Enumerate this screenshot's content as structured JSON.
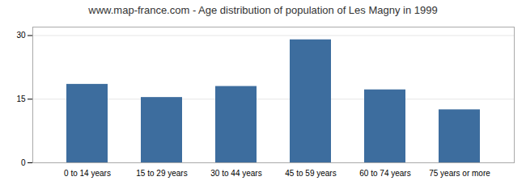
{
  "chart_data": {
    "type": "bar",
    "title": "www.map-france.com - Age distribution of population of Les Magny in 1999",
    "categories": [
      "0 to 14 years",
      "15 to 29 years",
      "30 to 44 years",
      "45 to 59 years",
      "60 to 74 years",
      "75 years or more"
    ],
    "values": [
      18.5,
      15.4,
      18.0,
      29.0,
      17.2,
      12.5
    ],
    "color": "#3d6d9e",
    "ylim": [
      0,
      32
    ],
    "yticks": [
      0,
      15,
      30
    ],
    "grid": true
  }
}
